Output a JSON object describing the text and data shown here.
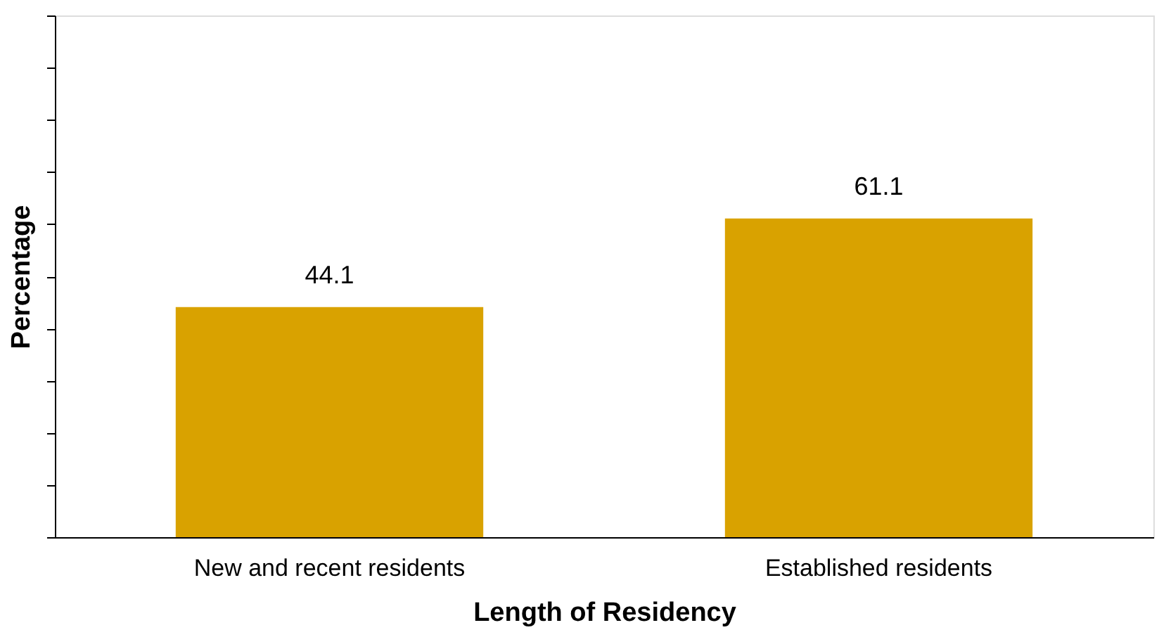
{
  "chart_data": {
    "type": "bar",
    "xlabel": "Length of Residency",
    "ylabel": "Percentage",
    "categories": [
      "New and recent residents",
      "Established residents"
    ],
    "values": [
      44.1,
      61.1
    ],
    "color": "#d9a200",
    "ylim": [
      0,
      100
    ],
    "tick_labels": "x",
    "data_labels": true
  }
}
